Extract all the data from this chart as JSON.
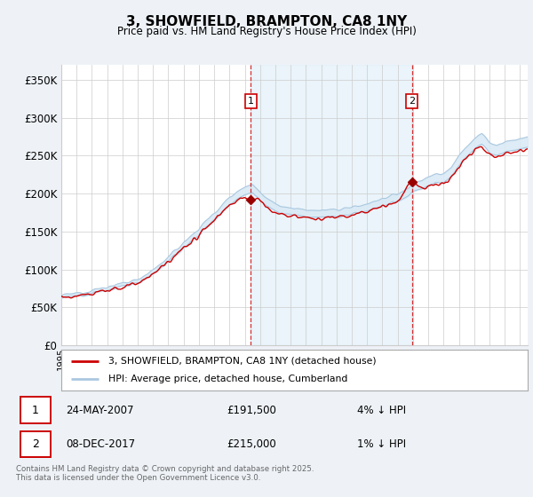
{
  "title": "3, SHOWFIELD, BRAMPTON, CA8 1NY",
  "subtitle": "Price paid vs. HM Land Registry's House Price Index (HPI)",
  "ylabel_ticks": [
    "£0",
    "£50K",
    "£100K",
    "£150K",
    "£200K",
    "£250K",
    "£300K",
    "£350K"
  ],
  "ylim": [
    0,
    370000
  ],
  "xlim_start": 1995.0,
  "xlim_end": 2025.5,
  "sale1_date": 2007.39,
  "sale1_price": 191500,
  "sale2_date": 2017.93,
  "sale2_price": 215000,
  "legend_line1": "3, SHOWFIELD, BRAMPTON, CA8 1NY (detached house)",
  "legend_line2": "HPI: Average price, detached house, Cumberland",
  "footer": "Contains HM Land Registry data © Crown copyright and database right 2025.\nThis data is licensed under the Open Government Licence v3.0.",
  "hpi_color": "#aac8e0",
  "hpi_fill_color": "#daeaf5",
  "price_color": "#cc0000",
  "sale_marker_color": "#990000",
  "vline_color": "#cc0000",
  "background_color": "#eef2f7",
  "plot_bg": "#ffffff",
  "grid_color": "#cccccc",
  "shade_color": "#ddeef8"
}
